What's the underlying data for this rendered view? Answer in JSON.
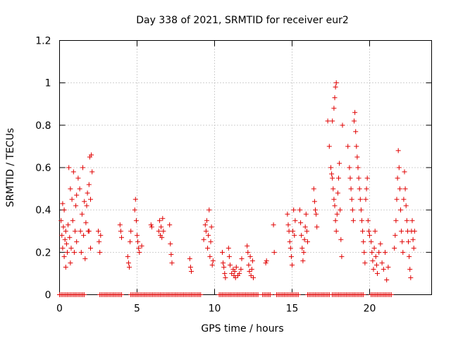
{
  "chart_data": {
    "type": "scatter",
    "title": "Day 338 of 2021, SRMTID for receiver eur2",
    "xlabel": "GPS time / hours",
    "ylabel": "SRMTID / TECUs",
    "xlim": [
      0,
      24
    ],
    "ylim": [
      0,
      1.2
    ],
    "xticks": [
      0,
      5,
      10,
      15,
      20
    ],
    "xtick_labels": [
      "0",
      "5",
      "10",
      "15",
      "20"
    ],
    "yticks": [
      0,
      0.2,
      0.4,
      0.6,
      0.8,
      1.0,
      1.2
    ],
    "ytick_labels": [
      "0",
      "0.2",
      "0.4",
      "0.6",
      "0.8",
      "1",
      "1.2"
    ],
    "grid": true,
    "marker": "+",
    "series": [
      {
        "name": "SRMTID",
        "color": "#e00000",
        "points": [
          [
            0.1,
            0.35
          ],
          [
            0.15,
            0.28
          ],
          [
            0.2,
            0.22
          ],
          [
            0.25,
            0.32
          ],
          [
            0.3,
            0.18
          ],
          [
            0.35,
            0.26
          ],
          [
            0.4,
            0.3
          ],
          [
            0.45,
            0.24
          ],
          [
            0.5,
            0.2
          ],
          [
            0.3,
            0.4
          ],
          [
            0.2,
            0.43
          ],
          [
            0.4,
            0.13
          ],
          [
            0.55,
            0.33
          ],
          [
            0.6,
            0.6
          ],
          [
            0.65,
            0.27
          ],
          [
            0.7,
            0.5
          ],
          [
            0.75,
            0.22
          ],
          [
            0.8,
            0.45
          ],
          [
            0.85,
            0.35
          ],
          [
            0.9,
            0.58
          ],
          [
            0.95,
            0.2
          ],
          [
            1.0,
            0.3
          ],
          [
            1.05,
            0.42
          ],
          [
            1.1,
            0.25
          ],
          [
            1.2,
            0.55
          ],
          [
            1.3,
            0.5
          ],
          [
            1.35,
            0.3
          ],
          [
            1.4,
            0.2
          ],
          [
            1.45,
            0.38
          ],
          [
            1.5,
            0.6
          ],
          [
            1.55,
            0.28
          ],
          [
            1.6,
            0.44
          ],
          [
            1.65,
            0.17
          ],
          [
            1.7,
            0.34
          ],
          [
            1.75,
            0.42
          ],
          [
            1.8,
            0.48
          ],
          [
            1.85,
            0.3
          ],
          [
            1.9,
            0.52
          ],
          [
            1.95,
            0.65
          ],
          [
            2.0,
            0.45
          ],
          [
            2.05,
            0.66
          ],
          [
            2.1,
            0.58
          ],
          [
            2.0,
            0.22
          ],
          [
            1.9,
            0.3
          ],
          [
            0.7,
            0.15
          ],
          [
            1.1,
            0.47
          ],
          [
            2.5,
            0.3
          ],
          [
            2.55,
            0.25
          ],
          [
            2.6,
            0.2
          ],
          [
            2.65,
            0.28
          ],
          [
            3.9,
            0.33
          ],
          [
            3.95,
            0.3
          ],
          [
            4.0,
            0.27
          ],
          [
            4.4,
            0.18
          ],
          [
            4.45,
            0.15
          ],
          [
            4.5,
            0.13
          ],
          [
            4.55,
            0.25
          ],
          [
            4.6,
            0.3
          ],
          [
            4.9,
            0.45
          ],
          [
            4.95,
            0.35
          ],
          [
            5.0,
            0.28
          ],
          [
            5.05,
            0.25
          ],
          [
            5.1,
            0.22
          ],
          [
            5.15,
            0.2
          ],
          [
            4.85,
            0.4
          ],
          [
            5.3,
            0.23
          ],
          [
            5.9,
            0.33
          ],
          [
            5.95,
            0.32
          ],
          [
            6.4,
            0.3
          ],
          [
            6.45,
            0.35
          ],
          [
            6.5,
            0.28
          ],
          [
            6.55,
            0.32
          ],
          [
            6.6,
            0.27
          ],
          [
            6.65,
            0.36
          ],
          [
            6.7,
            0.3
          ],
          [
            7.1,
            0.33
          ],
          [
            7.15,
            0.24
          ],
          [
            7.2,
            0.19
          ],
          [
            7.25,
            0.15
          ],
          [
            8.4,
            0.17
          ],
          [
            8.45,
            0.13
          ],
          [
            8.5,
            0.11
          ],
          [
            9.3,
            0.26
          ],
          [
            9.4,
            0.33
          ],
          [
            9.45,
            0.3
          ],
          [
            9.5,
            0.35
          ],
          [
            9.55,
            0.22
          ],
          [
            9.6,
            0.28
          ],
          [
            9.65,
            0.4
          ],
          [
            9.7,
            0.18
          ],
          [
            9.75,
            0.25
          ],
          [
            9.8,
            0.32
          ],
          [
            9.85,
            0.14
          ],
          [
            9.9,
            0.16
          ],
          [
            10.5,
            0.2
          ],
          [
            10.55,
            0.15
          ],
          [
            10.6,
            0.13
          ],
          [
            10.65,
            0.1
          ],
          [
            10.7,
            0.08
          ],
          [
            10.9,
            0.22
          ],
          [
            10.95,
            0.18
          ],
          [
            11.0,
            0.14
          ],
          [
            11.1,
            0.1
          ],
          [
            11.2,
            0.12
          ],
          [
            11.25,
            0.09
          ],
          [
            11.3,
            0.11
          ],
          [
            11.35,
            0.08
          ],
          [
            11.4,
            0.13
          ],
          [
            11.5,
            0.09
          ],
          [
            11.6,
            0.1
          ],
          [
            11.7,
            0.12
          ],
          [
            11.75,
            0.17
          ],
          [
            12.1,
            0.23
          ],
          [
            12.15,
            0.2
          ],
          [
            12.2,
            0.14
          ],
          [
            12.25,
            0.11
          ],
          [
            12.3,
            0.18
          ],
          [
            12.35,
            0.09
          ],
          [
            12.4,
            0.12
          ],
          [
            12.45,
            0.16
          ],
          [
            12.5,
            0.08
          ],
          [
            13.3,
            0.15
          ],
          [
            13.35,
            0.16
          ],
          [
            13.8,
            0.33
          ],
          [
            13.85,
            0.2
          ],
          [
            14.7,
            0.38
          ],
          [
            14.75,
            0.33
          ],
          [
            14.8,
            0.3
          ],
          [
            14.85,
            0.25
          ],
          [
            14.9,
            0.22
          ],
          [
            14.95,
            0.18
          ],
          [
            15.0,
            0.14
          ],
          [
            15.05,
            0.3
          ],
          [
            15.1,
            0.4
          ],
          [
            15.15,
            0.28
          ],
          [
            15.2,
            0.35
          ],
          [
            15.5,
            0.4
          ],
          [
            15.55,
            0.34
          ],
          [
            15.6,
            0.28
          ],
          [
            15.65,
            0.22
          ],
          [
            15.7,
            0.16
          ],
          [
            15.75,
            0.2
          ],
          [
            15.8,
            0.26
          ],
          [
            15.85,
            0.32
          ],
          [
            15.9,
            0.38
          ],
          [
            15.95,
            0.3
          ],
          [
            16.0,
            0.25
          ],
          [
            16.4,
            0.5
          ],
          [
            16.45,
            0.44
          ],
          [
            16.5,
            0.4
          ],
          [
            16.55,
            0.38
          ],
          [
            16.6,
            0.32
          ],
          [
            17.3,
            0.82
          ],
          [
            17.4,
            0.7
          ],
          [
            17.5,
            0.6
          ],
          [
            17.55,
            0.57
          ],
          [
            17.6,
            0.55
          ],
          [
            17.65,
            0.5
          ],
          [
            17.7,
            0.45
          ],
          [
            17.75,
            0.42
          ],
          [
            17.8,
            0.35
          ],
          [
            17.85,
            0.3
          ],
          [
            17.7,
            0.88
          ],
          [
            17.75,
            0.93
          ],
          [
            17.8,
            0.98
          ],
          [
            17.85,
            1.0
          ],
          [
            17.6,
            0.82
          ],
          [
            17.9,
            0.38
          ],
          [
            17.95,
            0.48
          ],
          [
            18.0,
            0.55
          ],
          [
            18.05,
            0.62
          ],
          [
            18.1,
            0.4
          ],
          [
            18.15,
            0.26
          ],
          [
            18.2,
            0.18
          ],
          [
            18.25,
            0.8
          ],
          [
            18.6,
            0.7
          ],
          [
            18.7,
            0.6
          ],
          [
            18.75,
            0.55
          ],
          [
            18.8,
            0.5
          ],
          [
            18.85,
            0.45
          ],
          [
            18.9,
            0.4
          ],
          [
            18.95,
            0.35
          ],
          [
            19.0,
            0.82
          ],
          [
            19.05,
            0.86
          ],
          [
            19.1,
            0.77
          ],
          [
            19.15,
            0.7
          ],
          [
            19.2,
            0.65
          ],
          [
            19.25,
            0.6
          ],
          [
            19.3,
            0.55
          ],
          [
            19.35,
            0.5
          ],
          [
            19.4,
            0.45
          ],
          [
            19.45,
            0.4
          ],
          [
            19.5,
            0.35
          ],
          [
            19.55,
            0.3
          ],
          [
            19.6,
            0.25
          ],
          [
            19.65,
            0.2
          ],
          [
            19.7,
            0.15
          ],
          [
            19.75,
            0.45
          ],
          [
            19.8,
            0.5
          ],
          [
            19.85,
            0.55
          ],
          [
            19.9,
            0.35
          ],
          [
            19.95,
            0.3
          ],
          [
            20.0,
            0.28
          ],
          [
            20.1,
            0.25
          ],
          [
            20.15,
            0.2
          ],
          [
            20.2,
            0.16
          ],
          [
            20.25,
            0.12
          ],
          [
            20.3,
            0.22
          ],
          [
            20.35,
            0.3
          ],
          [
            20.4,
            0.18
          ],
          [
            20.45,
            0.14
          ],
          [
            20.5,
            0.1
          ],
          [
            20.6,
            0.2
          ],
          [
            20.7,
            0.24
          ],
          [
            20.8,
            0.15
          ],
          [
            20.9,
            0.12
          ],
          [
            21.0,
            0.2
          ],
          [
            21.1,
            0.07
          ],
          [
            21.2,
            0.13
          ],
          [
            21.6,
            0.22
          ],
          [
            21.65,
            0.28
          ],
          [
            21.7,
            0.35
          ],
          [
            21.75,
            0.45
          ],
          [
            21.8,
            0.55
          ],
          [
            21.85,
            0.68
          ],
          [
            21.9,
            0.6
          ],
          [
            21.95,
            0.5
          ],
          [
            22.0,
            0.4
          ],
          [
            22.05,
            0.3
          ],
          [
            22.1,
            0.25
          ],
          [
            22.15,
            0.2
          ],
          [
            22.2,
            0.45
          ],
          [
            22.25,
            0.58
          ],
          [
            22.3,
            0.5
          ],
          [
            22.35,
            0.42
          ],
          [
            22.4,
            0.35
          ],
          [
            22.45,
            0.3
          ],
          [
            22.5,
            0.25
          ],
          [
            22.55,
            0.18
          ],
          [
            22.6,
            0.12
          ],
          [
            22.65,
            0.08
          ],
          [
            22.7,
            0.3
          ],
          [
            22.75,
            0.35
          ],
          [
            22.8,
            0.26
          ],
          [
            22.85,
            0.22
          ],
          [
            22.9,
            0.3
          ]
        ],
        "zero_segments": [
          [
            0.0,
            1.6
          ],
          [
            2.6,
            4.0
          ],
          [
            4.6,
            9.1
          ],
          [
            10.3,
            10.9
          ],
          [
            11.0,
            12.8
          ],
          [
            13.1,
            13.6
          ],
          [
            14.0,
            15.4
          ],
          [
            16.0,
            17.4
          ],
          [
            17.6,
            19.6
          ],
          [
            20.1,
            21.4
          ]
        ]
      }
    ]
  }
}
